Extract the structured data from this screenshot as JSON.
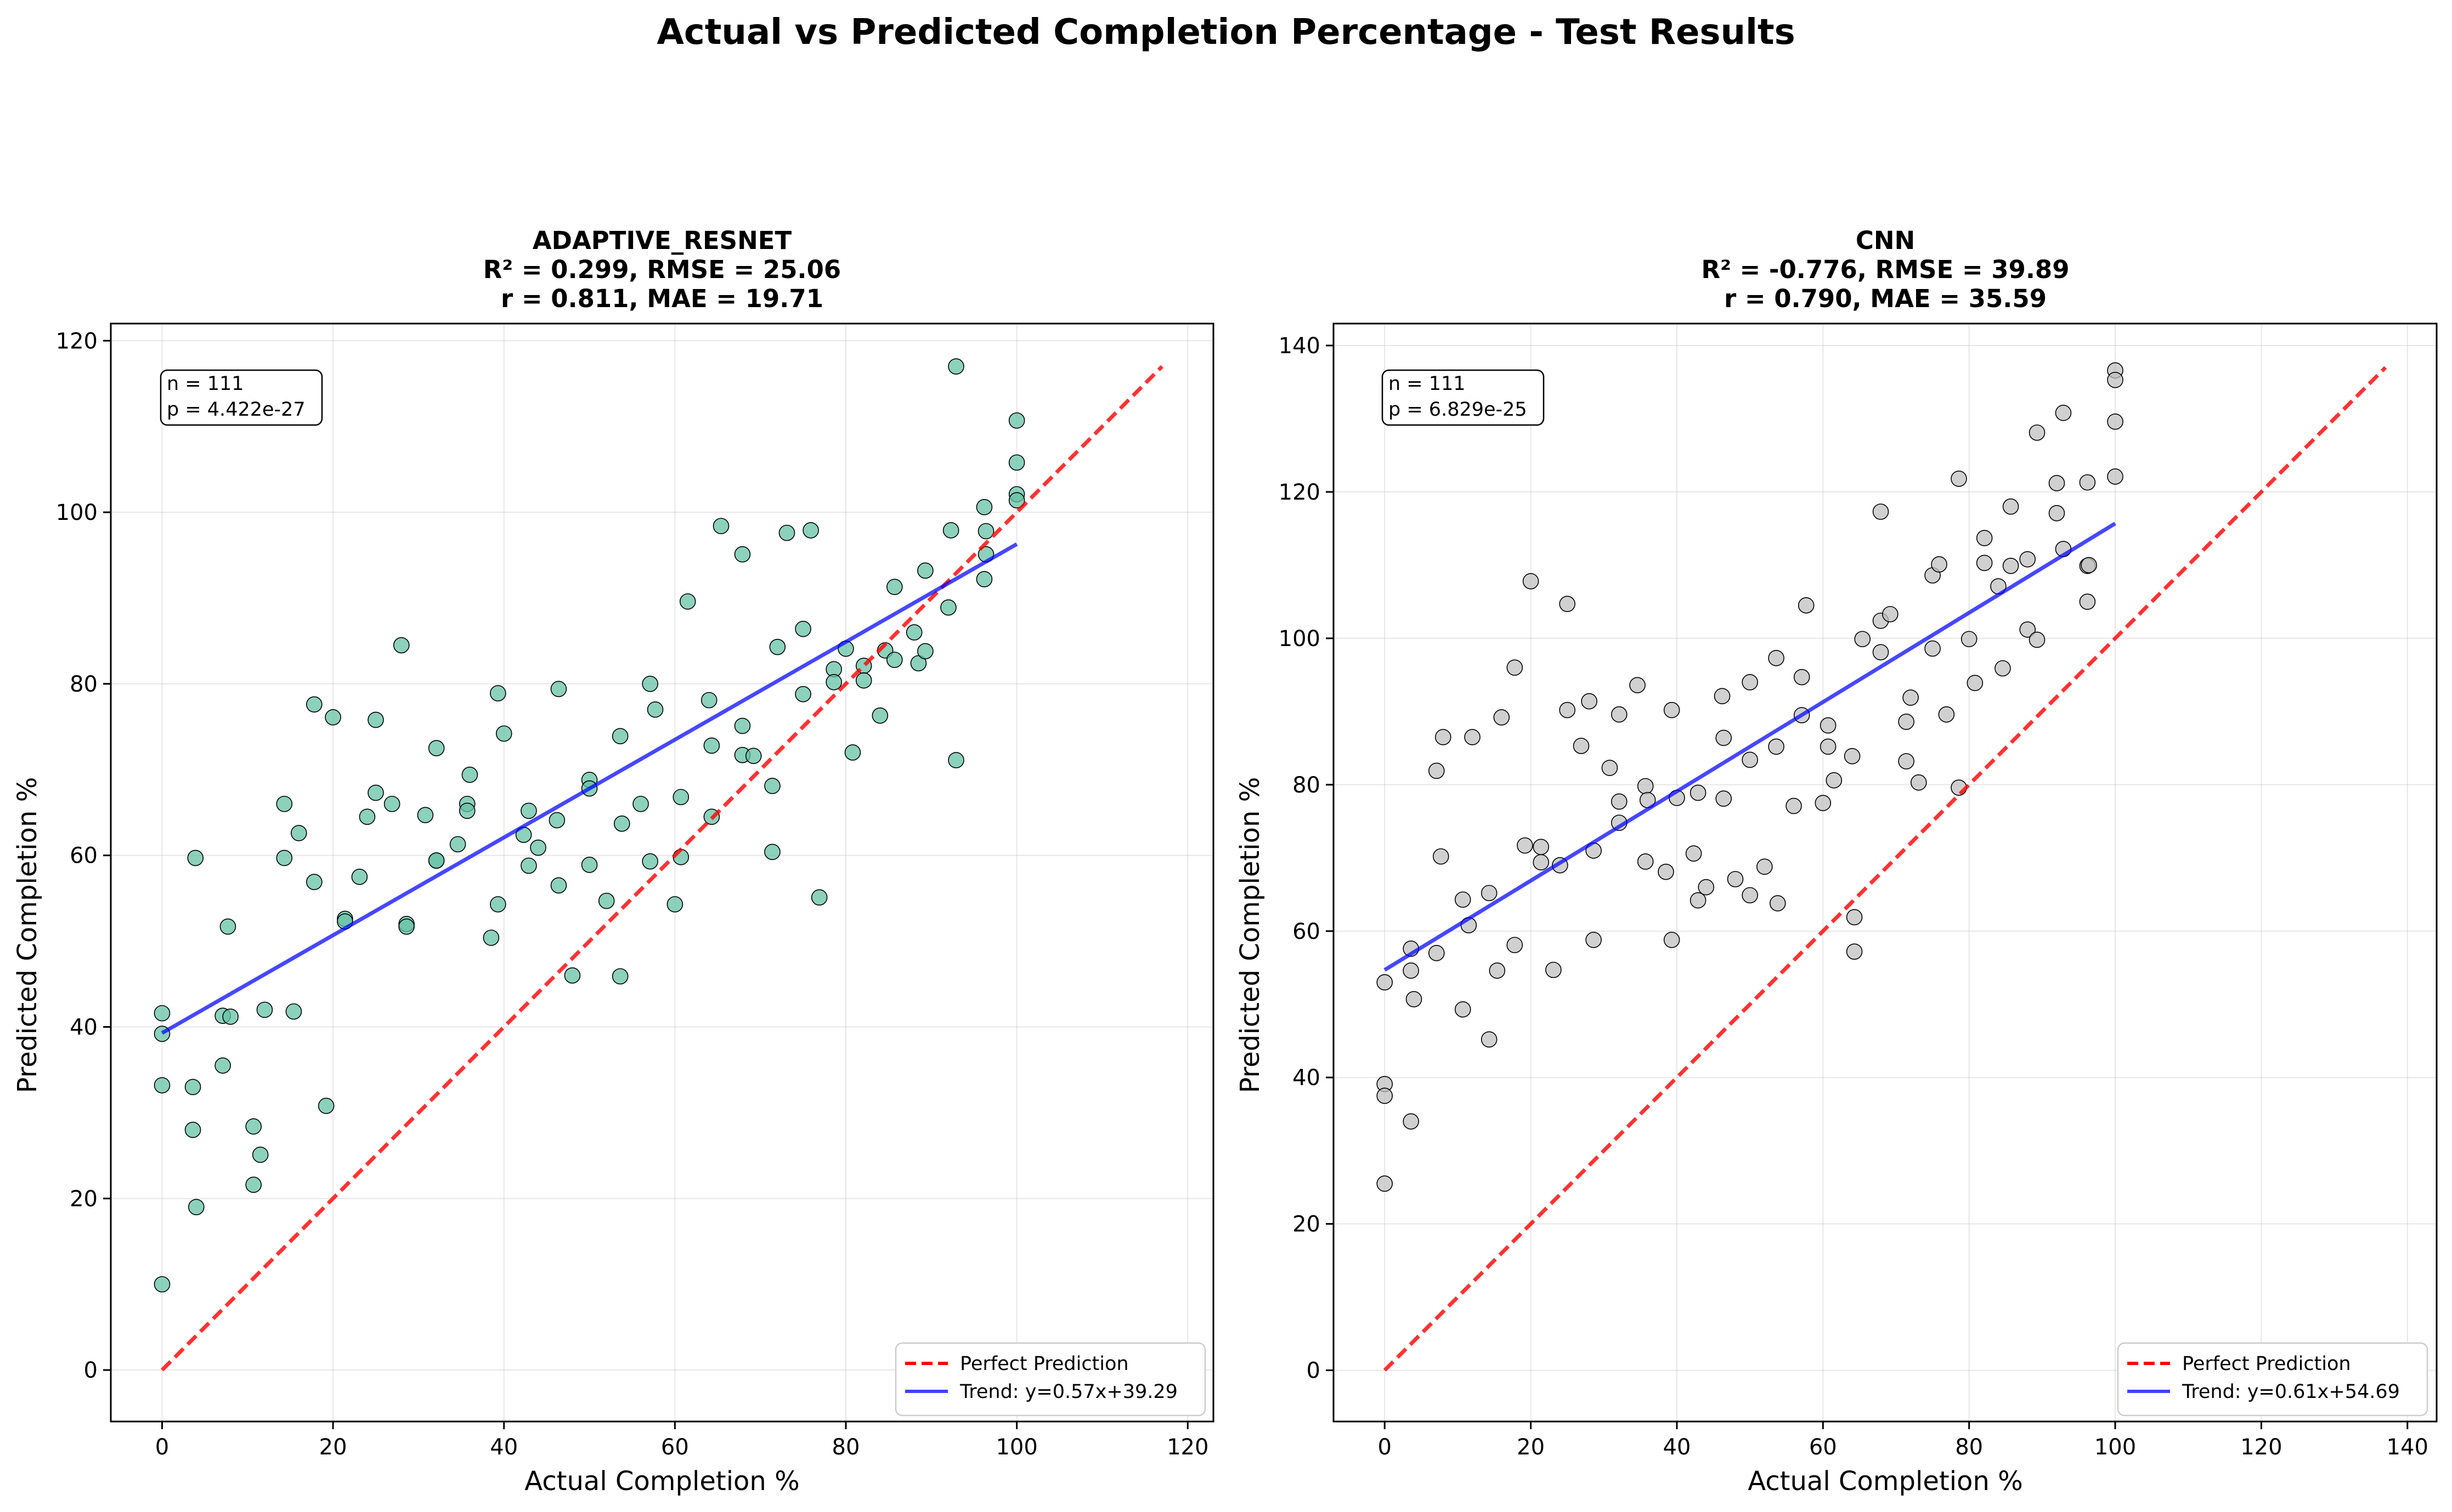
{
  "figure": {
    "title": "Actual vs Predicted Completion Percentage - Test Results"
  },
  "chart_data": [
    {
      "type": "scatter",
      "title": "ADAPTIVE_RESNET",
      "metrics_line1": "R² = 0.299, RMSE = 25.06",
      "metrics_line2": "r = 0.811, MAE = 19.71",
      "xlabel": "Actual Completion %",
      "ylabel": "Predicted Completion %",
      "xlim": [
        -6,
        123
      ],
      "ylim": [
        -6,
        122
      ],
      "xticks": [
        0,
        20,
        40,
        60,
        80,
        100,
        120
      ],
      "yticks": [
        0,
        20,
        40,
        60,
        80,
        100,
        120
      ],
      "grid": true,
      "point_color": "#66c2a5",
      "stats_box": {
        "n": "n = 111",
        "p": "p = 4.422e-27",
        "placement": "top-left"
      },
      "legend": {
        "placement": "bottom-right",
        "entries": [
          {
            "label": "Perfect Prediction",
            "color": "#ff0000",
            "style": "dashed"
          },
          {
            "label": "Trend: y=0.57x+39.29",
            "color": "#0000ff",
            "style": "solid"
          }
        ]
      },
      "perfect_line": {
        "x": [
          0,
          117
        ],
        "y": [
          0,
          117
        ]
      },
      "trend_line": {
        "slope": 0.57,
        "intercept": 39.29,
        "x": [
          0,
          100
        ]
      },
      "points": [
        [
          0,
          41.6
        ],
        [
          0,
          39.2
        ],
        [
          0,
          33.2
        ],
        [
          0,
          10.0
        ],
        [
          3.6,
          33.0
        ],
        [
          3.6,
          28.0
        ],
        [
          3.9,
          59.7
        ],
        [
          4.0,
          19.0
        ],
        [
          7.1,
          41.3
        ],
        [
          7.1,
          35.5
        ],
        [
          7.7,
          51.7
        ],
        [
          8.0,
          41.2
        ],
        [
          10.7,
          28.4
        ],
        [
          10.7,
          21.6
        ],
        [
          11.5,
          25.1
        ],
        [
          12.0,
          42.0
        ],
        [
          14.3,
          59.7
        ],
        [
          14.3,
          66.0
        ],
        [
          15.4,
          41.8
        ],
        [
          16.0,
          62.6
        ],
        [
          17.8,
          77.6
        ],
        [
          17.8,
          56.9
        ],
        [
          19.2,
          30.8
        ],
        [
          20.0,
          76.1
        ],
        [
          21.4,
          52.6
        ],
        [
          21.4,
          52.3
        ],
        [
          23.1,
          57.5
        ],
        [
          24.0,
          64.5
        ],
        [
          25.0,
          75.8
        ],
        [
          25.0,
          67.3
        ],
        [
          26.9,
          66.0
        ],
        [
          28.0,
          84.5
        ],
        [
          28.6,
          52.0
        ],
        [
          28.6,
          51.7
        ],
        [
          30.8,
          64.7
        ],
        [
          32.1,
          72.5
        ],
        [
          32.1,
          59.4
        ],
        [
          32.1,
          59.4
        ],
        [
          34.6,
          61.3
        ],
        [
          35.7,
          66.0
        ],
        [
          35.7,
          65.2
        ],
        [
          36.0,
          69.4
        ],
        [
          38.5,
          50.4
        ],
        [
          39.3,
          54.3
        ],
        [
          39.3,
          78.9
        ],
        [
          40.0,
          74.2
        ],
        [
          42.3,
          62.4
        ],
        [
          42.9,
          65.2
        ],
        [
          42.9,
          58.8
        ],
        [
          44.0,
          60.9
        ],
        [
          46.2,
          64.1
        ],
        [
          46.4,
          56.5
        ],
        [
          46.4,
          79.4
        ],
        [
          48.0,
          46.0
        ],
        [
          50.0,
          68.8
        ],
        [
          50.0,
          67.8
        ],
        [
          50.0,
          58.9
        ],
        [
          52.0,
          54.7
        ],
        [
          53.6,
          45.9
        ],
        [
          53.6,
          73.9
        ],
        [
          53.8,
          63.7
        ],
        [
          56.0,
          66.0
        ],
        [
          57.1,
          80.0
        ],
        [
          57.1,
          59.3
        ],
        [
          57.7,
          77.0
        ],
        [
          60.0,
          54.3
        ],
        [
          60.7,
          66.8
        ],
        [
          60.7,
          59.8
        ],
        [
          61.5,
          89.6
        ],
        [
          64.0,
          78.1
        ],
        [
          64.3,
          72.8
        ],
        [
          64.3,
          64.5
        ],
        [
          65.4,
          98.4
        ],
        [
          67.9,
          95.1
        ],
        [
          67.9,
          71.7
        ],
        [
          67.9,
          75.1
        ],
        [
          69.2,
          71.6
        ],
        [
          71.4,
          60.4
        ],
        [
          71.4,
          68.1
        ],
        [
          72.0,
          84.3
        ],
        [
          73.1,
          97.6
        ],
        [
          75.0,
          86.4
        ],
        [
          75.0,
          78.8
        ],
        [
          75.9,
          97.9
        ],
        [
          76.9,
          55.1
        ],
        [
          78.6,
          81.7
        ],
        [
          78.6,
          80.2
        ],
        [
          80.0,
          84.1
        ],
        [
          80.8,
          72.0
        ],
        [
          82.1,
          82.1
        ],
        [
          82.1,
          80.4
        ],
        [
          84.0,
          76.3
        ],
        [
          84.6,
          83.9
        ],
        [
          85.7,
          82.8
        ],
        [
          85.7,
          91.3
        ],
        [
          88.0,
          86.0
        ],
        [
          88.5,
          82.4
        ],
        [
          89.3,
          93.2
        ],
        [
          89.3,
          83.8
        ],
        [
          92.0,
          88.9
        ],
        [
          92.3,
          97.9
        ],
        [
          92.9,
          117.0
        ],
        [
          92.9,
          71.1
        ],
        [
          96.2,
          100.6
        ],
        [
          96.2,
          92.2
        ],
        [
          96.4,
          97.8
        ],
        [
          96.4,
          95.1
        ],
        [
          100,
          110.7
        ],
        [
          100,
          105.8
        ],
        [
          100,
          102.1
        ],
        [
          100,
          101.4
        ]
      ]
    },
    {
      "type": "scatter",
      "title": "CNN",
      "metrics_line1": "R² = -0.776, RMSE = 39.89",
      "metrics_line2": "r = 0.790, MAE = 35.59",
      "xlabel": "Actual Completion %",
      "ylabel": "Predicted Completion %",
      "xlim": [
        -7,
        144
      ],
      "ylim": [
        -7,
        143
      ],
      "xticks": [
        0,
        20,
        40,
        60,
        80,
        100,
        120,
        140
      ],
      "yticks": [
        0,
        20,
        40,
        60,
        80,
        100,
        120,
        140
      ],
      "grid": true,
      "point_color": "#c0c0c0",
      "stats_box": {
        "n": "n = 111",
        "p": "p = 6.829e-25",
        "placement": "top-left"
      },
      "legend": {
        "placement": "bottom-right",
        "entries": [
          {
            "label": "Perfect Prediction",
            "color": "#ff0000",
            "style": "dashed"
          },
          {
            "label": "Trend: y=0.61x+54.69",
            "color": "#0000ff",
            "style": "solid"
          }
        ]
      },
      "perfect_line": {
        "x": [
          0,
          137
        ],
        "y": [
          0,
          137
        ]
      },
      "trend_line": {
        "slope": 0.61,
        "intercept": 54.69,
        "x": [
          0,
          100
        ]
      },
      "points": [
        [
          0,
          53.0
        ],
        [
          0,
          39.1
        ],
        [
          0,
          37.5
        ],
        [
          0,
          25.5
        ],
        [
          3.6,
          57.6
        ],
        [
          3.6,
          54.6
        ],
        [
          3.6,
          34.0
        ],
        [
          4.0,
          50.7
        ],
        [
          7.1,
          81.9
        ],
        [
          7.1,
          57.0
        ],
        [
          7.7,
          70.2
        ],
        [
          8.0,
          86.5
        ],
        [
          10.7,
          64.3
        ],
        [
          10.7,
          49.3
        ],
        [
          11.5,
          60.8
        ],
        [
          12.0,
          86.5
        ],
        [
          14.3,
          65.2
        ],
        [
          14.3,
          45.2
        ],
        [
          15.4,
          54.6
        ],
        [
          16.0,
          89.2
        ],
        [
          17.8,
          96.0
        ],
        [
          17.8,
          58.1
        ],
        [
          19.2,
          71.7
        ],
        [
          20.0,
          107.8
        ],
        [
          21.4,
          71.5
        ],
        [
          21.4,
          69.4
        ],
        [
          23.1,
          54.7
        ],
        [
          24.0,
          69.0
        ],
        [
          25.0,
          104.7
        ],
        [
          25.0,
          90.2
        ],
        [
          26.9,
          85.3
        ],
        [
          28.0,
          91.4
        ],
        [
          28.6,
          71.0
        ],
        [
          28.6,
          58.8
        ],
        [
          30.8,
          82.3
        ],
        [
          32.1,
          89.6
        ],
        [
          32.1,
          77.7
        ],
        [
          32.1,
          74.8
        ],
        [
          34.6,
          93.6
        ],
        [
          35.7,
          79.8
        ],
        [
          35.7,
          69.5
        ],
        [
          36.0,
          77.9
        ],
        [
          38.5,
          68.1
        ],
        [
          39.3,
          90.2
        ],
        [
          39.3,
          58.8
        ],
        [
          40.0,
          78.2
        ],
        [
          42.3,
          70.6
        ],
        [
          42.9,
          64.2
        ],
        [
          42.9,
          78.9
        ],
        [
          44.0,
          66.0
        ],
        [
          46.2,
          92.1
        ],
        [
          46.4,
          86.4
        ],
        [
          46.4,
          78.1
        ],
        [
          48.0,
          67.1
        ],
        [
          50.0,
          94.0
        ],
        [
          50.0,
          83.4
        ],
        [
          50.0,
          64.9
        ],
        [
          52.0,
          68.8
        ],
        [
          53.6,
          97.3
        ],
        [
          53.6,
          85.2
        ],
        [
          53.8,
          63.8
        ],
        [
          56.0,
          77.1
        ],
        [
          57.1,
          94.7
        ],
        [
          57.1,
          89.5
        ],
        [
          57.7,
          104.5
        ],
        [
          60.0,
          77.5
        ],
        [
          60.7,
          88.1
        ],
        [
          60.7,
          85.2
        ],
        [
          61.5,
          80.6
        ],
        [
          64.0,
          83.9
        ],
        [
          64.3,
          61.9
        ],
        [
          64.3,
          57.2
        ],
        [
          65.4,
          99.9
        ],
        [
          67.9,
          117.3
        ],
        [
          67.9,
          102.4
        ],
        [
          67.9,
          98.1
        ],
        [
          69.2,
          103.3
        ],
        [
          71.4,
          88.6
        ],
        [
          71.4,
          83.2
        ],
        [
          72.0,
          91.9
        ],
        [
          73.1,
          80.3
        ],
        [
          75.0,
          108.6
        ],
        [
          75.0,
          98.6
        ],
        [
          75.9,
          110.1
        ],
        [
          76.9,
          89.6
        ],
        [
          78.6,
          121.8
        ],
        [
          78.6,
          79.6
        ],
        [
          80.0,
          99.9
        ],
        [
          80.8,
          93.9
        ],
        [
          82.1,
          113.7
        ],
        [
          82.1,
          110.3
        ],
        [
          84.0,
          107.1
        ],
        [
          84.6,
          95.9
        ],
        [
          85.7,
          118.0
        ],
        [
          85.7,
          109.9
        ],
        [
          88.0,
          110.8
        ],
        [
          88.0,
          101.2
        ],
        [
          89.3,
          128.1
        ],
        [
          89.3,
          99.8
        ],
        [
          92.0,
          121.2
        ],
        [
          92.0,
          117.1
        ],
        [
          92.9,
          130.8
        ],
        [
          92.9,
          112.2
        ],
        [
          96.2,
          121.3
        ],
        [
          96.2,
          109.9
        ],
        [
          96.2,
          105.0
        ],
        [
          96.4,
          110.0
        ],
        [
          100,
          136.6
        ],
        [
          100,
          135.3
        ],
        [
          100,
          129.6
        ],
        [
          100,
          122.1
        ]
      ]
    }
  ]
}
